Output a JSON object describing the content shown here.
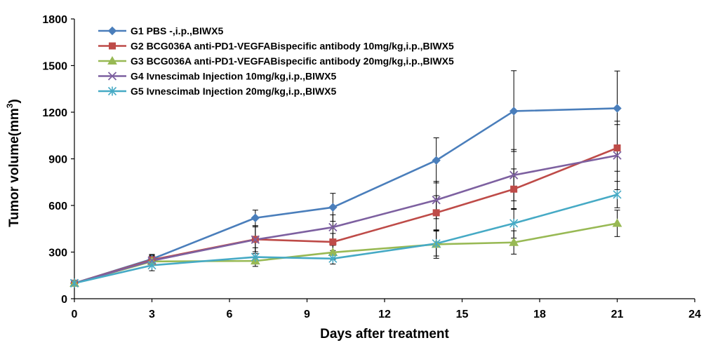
{
  "chart_data": {
    "type": "line",
    "xlabel": "Days after treatment",
    "ylabel": "Tumor volume(mm",
    "ylabel_sup": "3",
    "ylabel_close": ")",
    "xlim": [
      0,
      24
    ],
    "ylim": [
      0,
      1800
    ],
    "xticks": [
      0,
      3,
      6,
      9,
      12,
      15,
      18,
      21,
      24
    ],
    "yticks": [
      0,
      300,
      600,
      900,
      1200,
      1500,
      1800
    ],
    "grid": false,
    "legend_position": "top-left",
    "x": [
      0,
      3,
      7,
      10,
      14,
      17,
      21
    ],
    "series": [
      {
        "name": "G1 PBS -,i.p.,BIWX5",
        "color": "#4a7ebb",
        "marker": "diamond",
        "values": [
          100,
          255,
          520,
          588,
          890,
          1207,
          1225
        ],
        "errors": [
          0,
          30,
          50,
          90,
          145,
          260,
          240
        ]
      },
      {
        "name": "G2 BCG036A anti-PD1-VEGFABispecific antibody 10mg/kg,i.p.,BIWX5",
        "color": "#be4b48",
        "marker": "square",
        "values": [
          100,
          250,
          382,
          365,
          553,
          705,
          970
        ],
        "errors": [
          0,
          30,
          80,
          55,
          110,
          130,
          150
        ]
      },
      {
        "name": "G3 BCG036A anti-PD1-VEGFABispecific antibody 20mg/kg,i.p.,BIWX5",
        "color": "#98b954",
        "marker": "triangle",
        "values": [
          100,
          240,
          243,
          298,
          350,
          362,
          485
        ],
        "errors": [
          0,
          25,
          20,
          45,
          90,
          75,
          85
        ]
      },
      {
        "name": "G4 Ivnescimab Injection 10mg/kg,i.p.,BIWX5",
        "color": "#7d60a0",
        "marker": "x",
        "values": [
          100,
          245,
          380,
          460,
          635,
          795,
          922
        ],
        "errors": [
          0,
          30,
          90,
          80,
          120,
          165,
          220
        ]
      },
      {
        "name": "G5 Ivnescimab Injection 20mg/kg,i.p.,BIWX5",
        "color": "#46aac5",
        "marker": "star",
        "values": [
          100,
          215,
          268,
          258,
          355,
          485,
          670
        ],
        "errors": [
          0,
          35,
          60,
          35,
          80,
          95,
          85
        ]
      }
    ]
  }
}
